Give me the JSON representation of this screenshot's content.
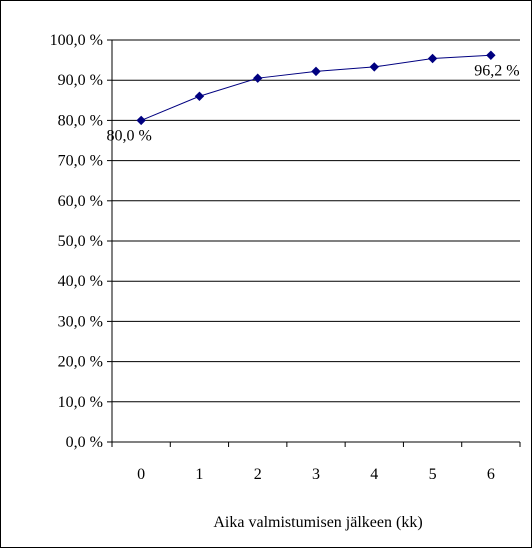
{
  "chart_data": {
    "type": "line",
    "title": "",
    "xlabel": "Aika valmistumisen jälkeen (kk)",
    "ylabel": "",
    "categories": [
      "0",
      "1",
      "2",
      "3",
      "4",
      "5",
      "6"
    ],
    "series": [
      {
        "values": [
          80.0,
          86.0,
          90.5,
          92.2,
          93.3,
          95.4,
          96.2
        ]
      }
    ],
    "ylim": [
      0,
      100
    ],
    "yticks": [
      "0,0 %",
      "10,0 %",
      "20,0 %",
      "30,0 %",
      "40,0 %",
      "50,0 %",
      "60,0 %",
      "70,0 %",
      "80,0 %",
      "90,0 %",
      "100,0 %"
    ],
    "data_labels": [
      {
        "index": 0,
        "text": "80,0 %"
      },
      {
        "index": 6,
        "text": "96,2 %"
      }
    ],
    "grid": true,
    "legend": "none",
    "colors": {
      "line": "#000080",
      "marker": "#000080",
      "grid": "#000000",
      "axis": "#000000"
    }
  }
}
